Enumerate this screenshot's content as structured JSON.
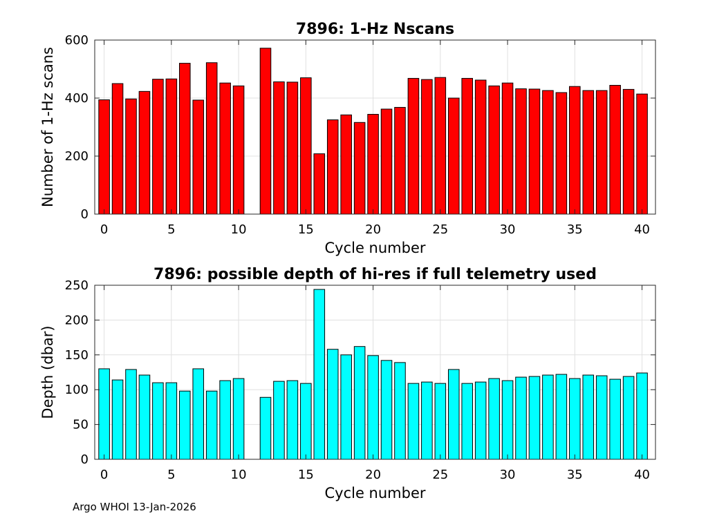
{
  "footer": "Argo WHOI 13-Jan-2026",
  "chart_data": [
    {
      "type": "bar",
      "title": "7896: 1-Hz Nscans",
      "xlabel": "Cycle number",
      "ylabel": "Number of 1-Hz scans",
      "x": [
        0,
        1,
        2,
        3,
        4,
        5,
        6,
        7,
        8,
        9,
        10,
        12,
        13,
        14,
        15,
        16,
        17,
        18,
        19,
        20,
        21,
        22,
        23,
        24,
        25,
        26,
        27,
        28,
        29,
        30,
        31,
        32,
        33,
        34,
        35,
        36,
        37,
        38,
        39,
        40
      ],
      "values": [
        394,
        450,
        397,
        423,
        465,
        466,
        520,
        393,
        522,
        452,
        442,
        572,
        456,
        455,
        470,
        208,
        325,
        342,
        316,
        344,
        362,
        368,
        468,
        464,
        471,
        400,
        468,
        462,
        442,
        452,
        432,
        431,
        426,
        419,
        440,
        426,
        426,
        444,
        430,
        414
      ],
      "xlim": [
        -0.7,
        41.0
      ],
      "ylim": [
        0,
        600
      ],
      "xticks": [
        0,
        5,
        10,
        15,
        20,
        25,
        30,
        35,
        40
      ],
      "yticks": [
        0,
        200,
        400,
        600
      ],
      "bar_color": "#ff0000",
      "grid": true
    },
    {
      "type": "bar",
      "title": "7896: possible depth of hi-res if full telemetry used",
      "xlabel": "Cycle number",
      "ylabel": "Depth (dbar)",
      "x": [
        0,
        1,
        2,
        3,
        4,
        5,
        6,
        7,
        8,
        9,
        10,
        12,
        13,
        14,
        15,
        16,
        17,
        18,
        19,
        20,
        21,
        22,
        23,
        24,
        25,
        26,
        27,
        28,
        29,
        30,
        31,
        32,
        33,
        34,
        35,
        36,
        37,
        38,
        39,
        40
      ],
      "values": [
        130,
        114,
        129,
        121,
        110,
        110,
        98,
        130,
        98,
        113,
        116,
        89,
        112,
        113,
        109,
        244,
        158,
        150,
        162,
        149,
        142,
        139,
        109,
        111,
        109,
        129,
        109,
        111,
        116,
        113,
        118,
        119,
        121,
        122,
        116,
        121,
        120,
        115,
        119,
        124
      ],
      "xlim": [
        -0.7,
        41.0
      ],
      "ylim": [
        0,
        250
      ],
      "xticks": [
        0,
        5,
        10,
        15,
        20,
        25,
        30,
        35,
        40
      ],
      "yticks": [
        0,
        50,
        100,
        150,
        200,
        250
      ],
      "bar_color": "#00ffff",
      "grid": true
    }
  ]
}
